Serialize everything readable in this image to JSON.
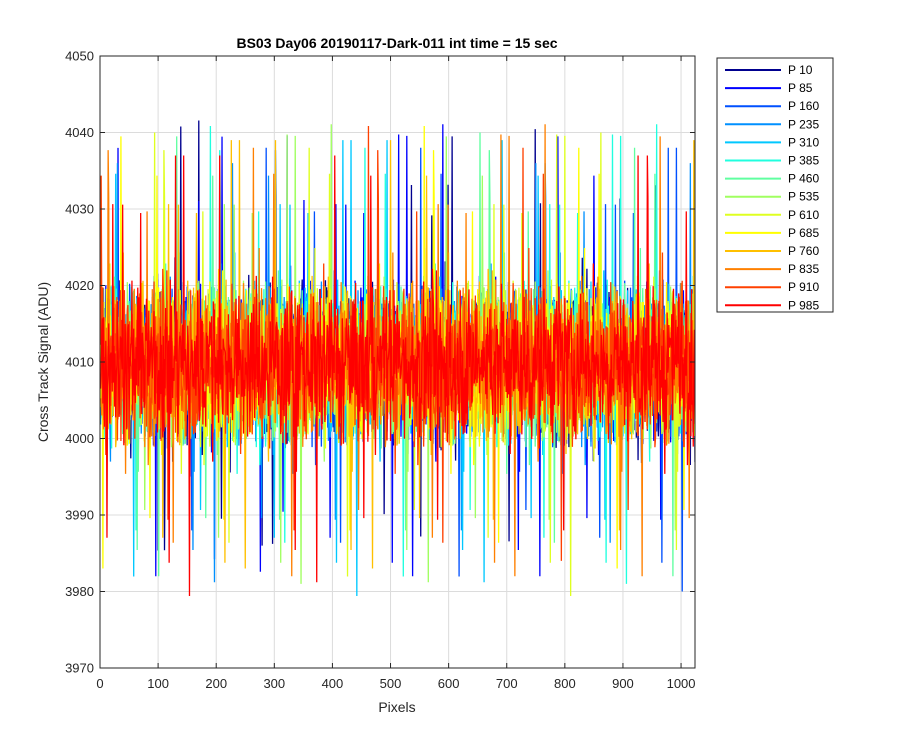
{
  "chart_data": {
    "type": "line",
    "title": "BS03 Day06 20190117-Dark-011 int time = 15 sec",
    "xlabel": "Pixels",
    "ylabel": "Cross Track Signal (ADU)",
    "xlim": [
      0,
      1024
    ],
    "ylim": [
      3970,
      4050
    ],
    "xticks": [
      0,
      100,
      200,
      300,
      400,
      500,
      600,
      700,
      800,
      900,
      1000
    ],
    "yticks": [
      3970,
      3980,
      3990,
      4000,
      4010,
      4020,
      4030,
      4040,
      4050
    ],
    "grid": true,
    "legend_position": "outside-top-right",
    "n_points": 1024,
    "series": [
      {
        "name": "P 10",
        "color": "#00008f",
        "mean": 4010,
        "min": 3978,
        "max": 4042
      },
      {
        "name": "P 85",
        "color": "#0000ff",
        "mean": 4010,
        "min": 3982,
        "max": 4043
      },
      {
        "name": "P 160",
        "color": "#0050ff",
        "mean": 4010,
        "min": 3980,
        "max": 4038
      },
      {
        "name": "P 235",
        "color": "#0090ff",
        "mean": 4010,
        "min": 3979,
        "max": 4036
      },
      {
        "name": "P 310",
        "color": "#00c8ff",
        "mean": 4010,
        "min": 3979,
        "max": 4039
      },
      {
        "name": "P 385",
        "color": "#20ffdf",
        "mean": 4010,
        "min": 3981,
        "max": 4042
      },
      {
        "name": "P 460",
        "color": "#60ffa0",
        "mean": 4010,
        "min": 3982,
        "max": 4040
      },
      {
        "name": "P 535",
        "color": "#a0ff60",
        "mean": 4010,
        "min": 3981,
        "max": 4042
      },
      {
        "name": "P 610",
        "color": "#dfff20",
        "mean": 4010,
        "min": 3979,
        "max": 4040
      },
      {
        "name": "P 685",
        "color": "#ffff00",
        "mean": 4010,
        "min": 3983,
        "max": 4043
      },
      {
        "name": "P 760",
        "color": "#ffc000",
        "mean": 4010,
        "min": 3983,
        "max": 4039
      },
      {
        "name": "P 835",
        "color": "#ff8000",
        "mean": 4010,
        "min": 3982,
        "max": 4047
      },
      {
        "name": "P 910",
        "color": "#ff4000",
        "mean": 4010,
        "min": 3984,
        "max": 4046
      },
      {
        "name": "P 985",
        "color": "#ff0000",
        "mean": 4010,
        "min": 3977,
        "max": 4037
      }
    ]
  }
}
